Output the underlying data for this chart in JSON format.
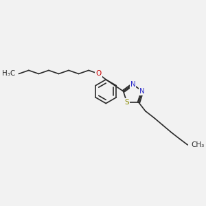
{
  "background_color": "#f2f2f2",
  "bond_color": "#2a2a2a",
  "S_color": "#8a8a00",
  "N_color": "#3333cc",
  "O_color": "#cc0000",
  "label_S": "S",
  "label_N": "N",
  "label_O": "O",
  "label_CH3_left": "H₃C",
  "label_CH3_right": "CH₃",
  "figsize": [
    3.0,
    3.0
  ],
  "dpi": 100
}
